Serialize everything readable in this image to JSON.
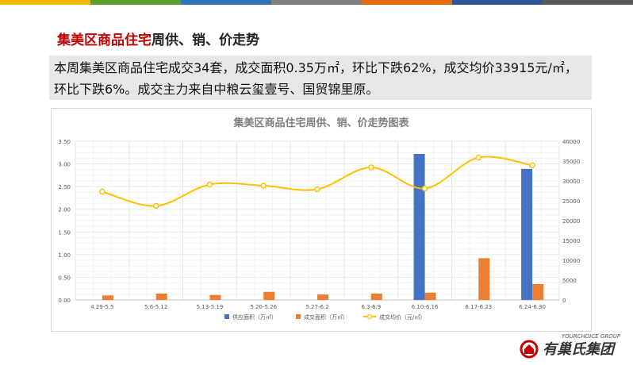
{
  "topbar_colors": [
    "#f2b800",
    "#5aa02c",
    "#2e75b6",
    "#7f7f7f",
    "#e46c0a",
    "#2f5597",
    "#595959"
  ],
  "heading": {
    "accent": "集美区商品住宅",
    "rest": "周供、销、价走势"
  },
  "summary": {
    "text": "本周集美区商品住宅成交34套，成交面积0.35万㎡，环比下跌62%，成交均价33915元/㎡，环比下跌6%。成交主力来自中粮云玺壹号、国贸锦里原。"
  },
  "chart_data": {
    "type": "bar",
    "title": "集美区商品住宅周供、销、价走势图表",
    "categories": [
      "4.29-5.5",
      "5.6-5.12",
      "5.13-5.19",
      "5.20-5.26",
      "5.27-6.2",
      "6.3-6.9",
      "6.10-6.16",
      "6.17-6.23",
      "6.24-6.30"
    ],
    "y_left": {
      "min": 0,
      "max": 3.5,
      "ticks": [
        "0.00",
        "0.50",
        "1.00",
        "1.50",
        "2.00",
        "2.50",
        "3.00",
        "3.50"
      ]
    },
    "y_right": {
      "min": 0,
      "max": 40000,
      "ticks": [
        "0",
        "5000",
        "10000",
        "15000",
        "20000",
        "25000",
        "30000",
        "35000",
        "40000"
      ]
    },
    "series": [
      {
        "name": "供应面积（万㎡）",
        "kind": "bar",
        "axis": "left",
        "color": "#4472c4",
        "values": [
          0,
          0,
          0,
          0,
          0,
          0,
          3.22,
          0,
          2.89
        ]
      },
      {
        "name": "成交面积（万㎡）",
        "kind": "bar",
        "axis": "left",
        "color": "#ed7d31",
        "values": [
          0.1,
          0.14,
          0.11,
          0.18,
          0.12,
          0.14,
          0.16,
          0.92,
          0.35
        ]
      },
      {
        "name": "成交均价（元/㎡）",
        "kind": "line",
        "axis": "right",
        "color": "#ffc000",
        "values": [
          27300,
          23700,
          29100,
          28800,
          27900,
          33400,
          28100,
          35900,
          33915
        ]
      }
    ],
    "grid": true,
    "legend_position": "bottom"
  },
  "logo": {
    "name_en": "YOURCHOICE GROUP",
    "name_cn": "有巢氏集团"
  }
}
